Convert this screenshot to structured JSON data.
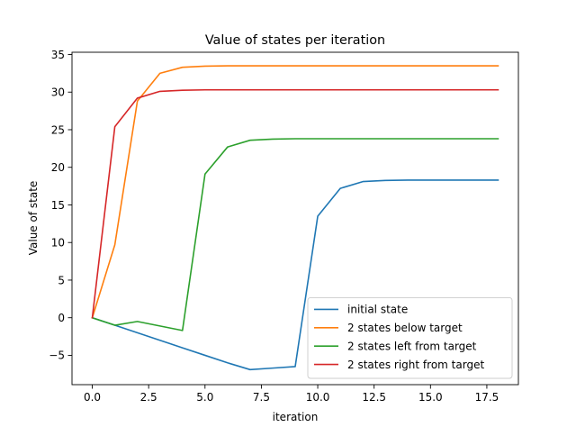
{
  "chart_data": {
    "type": "line",
    "title": "Value of states per iteration",
    "xlabel": "iteration",
    "ylabel": "Value of state",
    "xlim": [
      -0.9,
      18.9
    ],
    "ylim": [
      -8.9,
      35.3
    ],
    "xticks": [
      0.0,
      2.5,
      5.0,
      7.5,
      10.0,
      12.5,
      15.0,
      17.5
    ],
    "xtick_labels": [
      "0.0",
      "2.5",
      "5.0",
      "7.5",
      "10.0",
      "12.5",
      "15.0",
      "17.5"
    ],
    "yticks": [
      -5,
      0,
      5,
      10,
      15,
      20,
      25,
      30,
      35
    ],
    "ytick_labels": [
      "−5",
      "0",
      "5",
      "10",
      "15",
      "20",
      "25",
      "30",
      "35"
    ],
    "grid": false,
    "legend_position": "lower-right",
    "x": [
      0,
      1,
      2,
      3,
      4,
      5,
      6,
      7,
      8,
      9,
      10,
      11,
      12,
      13,
      14,
      15,
      16,
      17,
      18
    ],
    "series": [
      {
        "name": "initial state",
        "color": "#1f77b4",
        "values": [
          0,
          -1.0,
          -2.0,
          -3.0,
          -4.0,
          -5.0,
          -6.0,
          -6.9,
          -6.7,
          -6.5,
          13.5,
          17.2,
          18.1,
          18.25,
          18.3,
          18.3,
          18.3,
          18.3,
          18.3
        ]
      },
      {
        "name": "2 states below target",
        "color": "#ff7f0e",
        "values": [
          0,
          9.7,
          28.8,
          32.5,
          33.3,
          33.45,
          33.5,
          33.5,
          33.5,
          33.5,
          33.5,
          33.5,
          33.5,
          33.5,
          33.5,
          33.5,
          33.5,
          33.5,
          33.5
        ]
      },
      {
        "name": "2 states left from target",
        "color": "#2ca02c",
        "values": [
          0,
          -1.0,
          -0.5,
          -1.1,
          -1.7,
          19.1,
          22.7,
          23.6,
          23.75,
          23.8,
          23.8,
          23.8,
          23.8,
          23.8,
          23.8,
          23.8,
          23.8,
          23.8,
          23.8
        ]
      },
      {
        "name": "2 states right from target",
        "color": "#d62728",
        "values": [
          0,
          25.4,
          29.2,
          30.1,
          30.25,
          30.3,
          30.3,
          30.3,
          30.3,
          30.3,
          30.3,
          30.3,
          30.3,
          30.3,
          30.3,
          30.3,
          30.3,
          30.3,
          30.3
        ]
      }
    ]
  }
}
